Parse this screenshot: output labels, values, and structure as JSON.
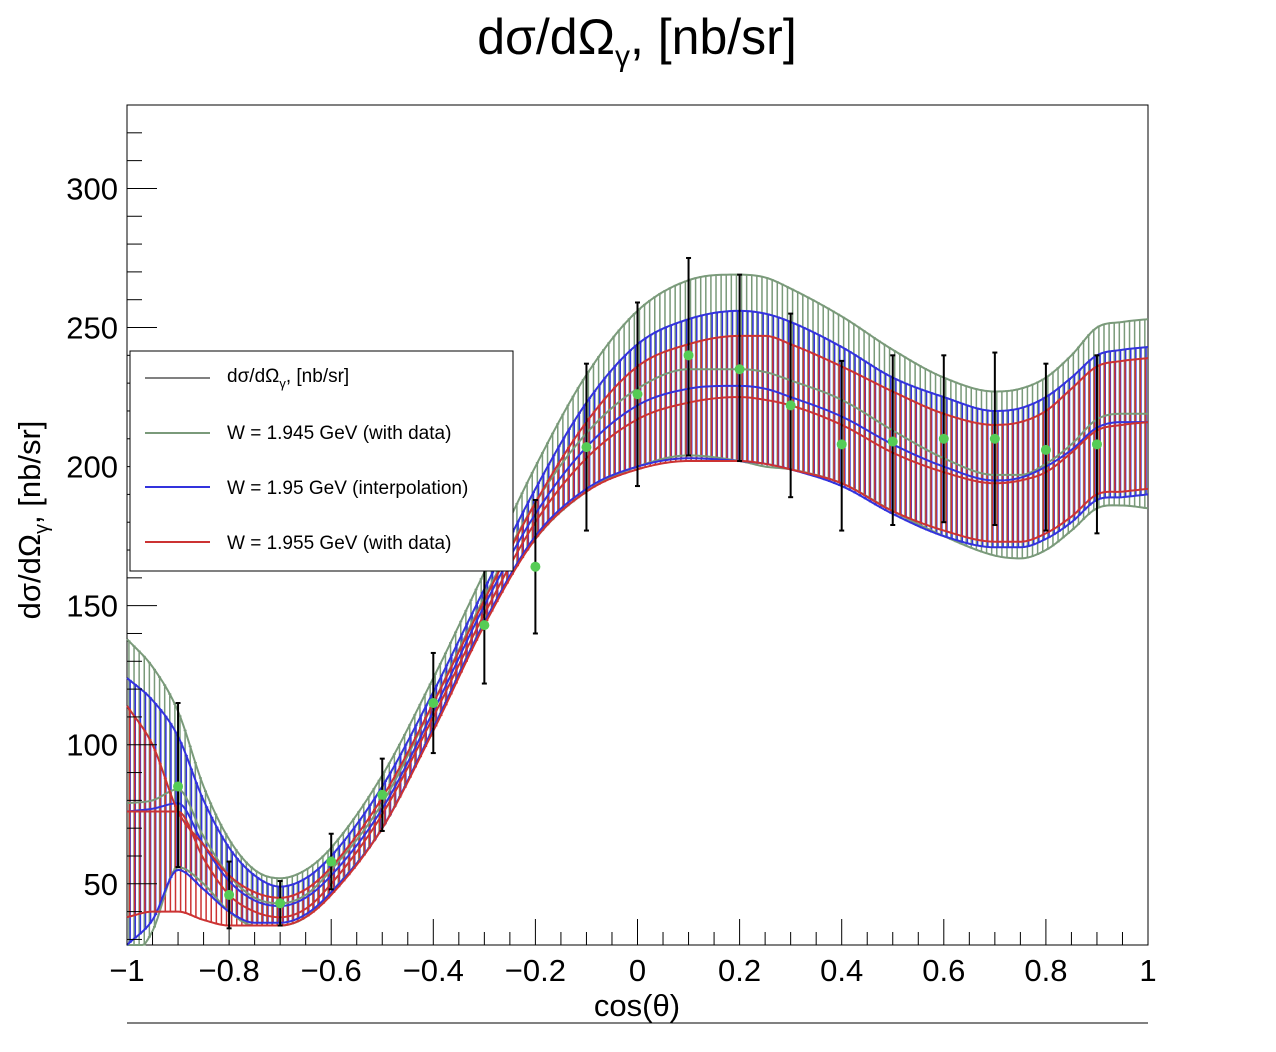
{
  "chart_data": {
    "type": "line",
    "title": {
      "main": "dσ/dΩ",
      "sub": "γ",
      "rest": ", [nb/sr]"
    },
    "xlabel": "cos(θ)",
    "ylabel": {
      "main": "dσ/dΩ",
      "sub": "γ",
      "rest": ", [nb/sr]"
    },
    "xlim": [
      -1,
      1
    ],
    "ylim": [
      28,
      330
    ],
    "x_ticks": [
      -1,
      -0.8,
      -0.6,
      -0.4,
      -0.2,
      0,
      0.2,
      0.4,
      0.6,
      0.8,
      1
    ],
    "x_tick_labels": [
      "−1",
      "−0.8",
      "−0.6",
      "−0.4",
      "−0.2",
      "0",
      "0.2",
      "0.4",
      "0.6",
      "0.8",
      "1"
    ],
    "y_ticks": [
      50,
      100,
      150,
      200,
      250,
      300
    ],
    "y_tick_labels": [
      "50",
      "100",
      "150",
      "200",
      "250",
      "300"
    ],
    "grid": false,
    "legend": {
      "placement": "upper-left",
      "entries": [
        {
          "label_main": "dσ/dΩ",
          "label_sub": "γ",
          "label_rest": ", [nb/sr]",
          "color": "#000000"
        },
        {
          "label_main": "W = 1.945 GeV (with data)",
          "color": "#7a9a7a"
        },
        {
          "label_main": "W = 1.95 GeV (interpolation)",
          "color": "#3333dd"
        },
        {
          "label_main": "W = 1.955 GeV (with data)",
          "color": "#cc3333"
        }
      ]
    },
    "curve_knots": {
      "x": [
        -1.0,
        -0.95,
        -0.9,
        -0.85,
        -0.8,
        -0.75,
        -0.7,
        -0.65,
        -0.6,
        -0.5,
        -0.4,
        -0.3,
        -0.2,
        -0.1,
        0.0,
        0.1,
        0.2,
        0.25,
        0.3,
        0.4,
        0.5,
        0.6,
        0.7,
        0.75,
        0.8,
        0.85,
        0.9,
        0.95,
        1.0
      ]
    },
    "series": [
      {
        "name": "W = 1.945 GeV (with data)",
        "color": "#7a9a7a",
        "upper": [
          138,
          128,
          112,
          85,
          66,
          55,
          52,
          55,
          63,
          89,
          124,
          162,
          200,
          233,
          256,
          267,
          269,
          268,
          264,
          254,
          242,
          232,
          227,
          228,
          232,
          240,
          250,
          252,
          253
        ],
        "lower": [
          20,
          33,
          56,
          50,
          40,
          35,
          35,
          38,
          47,
          70,
          106,
          144,
          174,
          191,
          200,
          204,
          202,
          200,
          199,
          194,
          184,
          175,
          168,
          167,
          170,
          177,
          185,
          186,
          185
        ],
        "mid": [
          79,
          80,
          84,
          67,
          53,
          45,
          43,
          46,
          55,
          79,
          115,
          153,
          187,
          212,
          228,
          235,
          235,
          234,
          231,
          224,
          213,
          203,
          197,
          197,
          201,
          208,
          217,
          219,
          219
        ]
      },
      {
        "name": "W = 1.95 GeV (interpolation)",
        "color": "#3333dd",
        "upper": [
          124,
          116,
          103,
          80,
          63,
          53,
          49,
          52,
          60,
          85,
          119,
          156,
          192,
          223,
          244,
          253,
          256,
          255,
          252,
          243,
          232,
          225,
          220,
          221,
          225,
          232,
          240,
          242,
          243
        ],
        "lower": [
          28,
          37,
          55,
          48,
          40,
          36,
          36,
          39,
          47,
          70,
          106,
          144,
          175,
          192,
          200,
          203,
          202,
          201,
          199,
          193,
          183,
          175,
          171,
          171,
          174,
          180,
          188,
          189,
          190
        ],
        "mid": [
          76,
          77,
          79,
          64,
          51,
          44,
          42,
          45,
          53,
          77,
          112,
          150,
          183,
          207,
          222,
          228,
          229,
          228,
          225,
          218,
          208,
          200,
          195,
          196,
          200,
          206,
          214,
          216,
          216
        ]
      },
      {
        "name": "W = 1.955 GeV (with data)",
        "color": "#cc3333",
        "upper": [
          114,
          100,
          76,
          64,
          53,
          47,
          45,
          48,
          56,
          81,
          115,
          152,
          187,
          216,
          236,
          244,
          247,
          247,
          244,
          236,
          227,
          219,
          215,
          216,
          220,
          228,
          236,
          238,
          239
        ],
        "lower": [
          38,
          40,
          40,
          37,
          35,
          35,
          35,
          38,
          46,
          70,
          105,
          143,
          174,
          191,
          199,
          202,
          202,
          201,
          199,
          194,
          184,
          177,
          173,
          173,
          176,
          182,
          190,
          191,
          192
        ],
        "mid": [
          76,
          76,
          76,
          59,
          46,
          40,
          38,
          41,
          50,
          75,
          110,
          147,
          180,
          203,
          217,
          223,
          225,
          224,
          222,
          215,
          205,
          198,
          194,
          195,
          198,
          205,
          213,
          215,
          216
        ]
      }
    ],
    "data_points": {
      "name": "dσ/dΩγ, [nb/sr]",
      "marker_color": "#55cc55",
      "x": [
        -0.9,
        -0.8,
        -0.7,
        -0.6,
        -0.5,
        -0.4,
        -0.3,
        -0.2,
        -0.1,
        0.0,
        0.1,
        0.2,
        0.3,
        0.4,
        0.5,
        0.6,
        0.7,
        0.8,
        0.9
      ],
      "y": [
        85,
        46,
        43,
        58,
        82,
        115,
        143,
        164,
        207,
        226,
        240,
        235,
        222,
        208,
        209,
        210,
        210,
        206,
        208
      ],
      "err_low": [
        29,
        12,
        8,
        10,
        13,
        18,
        21,
        24,
        30,
        33,
        36,
        33,
        33,
        31,
        30,
        30,
        31,
        29,
        32
      ],
      "err_high": [
        30,
        12,
        8,
        10,
        13,
        18,
        21,
        24,
        30,
        33,
        35,
        34,
        33,
        30,
        31,
        30,
        31,
        31,
        32
      ]
    }
  }
}
